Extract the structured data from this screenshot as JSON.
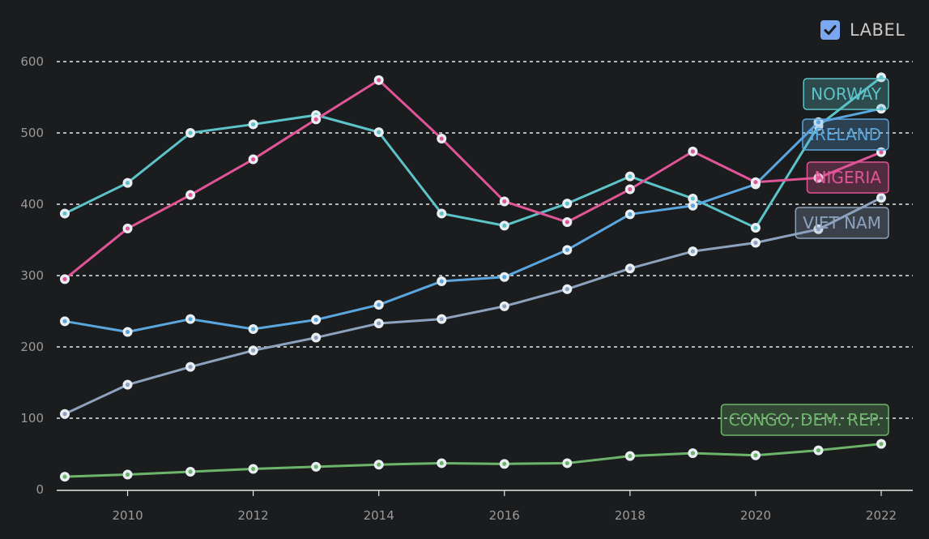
{
  "label_toggle": {
    "text": "LABEL",
    "checked": true
  },
  "chart_data": {
    "type": "line",
    "x": [
      2009,
      2010,
      2011,
      2012,
      2013,
      2014,
      2015,
      2016,
      2017,
      2018,
      2019,
      2020,
      2021,
      2022
    ],
    "xticks": [
      2010,
      2012,
      2014,
      2016,
      2018,
      2020,
      2022
    ],
    "yticks": [
      0,
      100,
      200,
      300,
      400,
      500,
      600
    ],
    "xlim": [
      2009,
      2022.5
    ],
    "ylim": [
      0,
      600
    ],
    "grid": "horizontal-dashed",
    "series": [
      {
        "name": "NORWAY",
        "color": "#5cc3c9",
        "values": [
          387,
          430,
          500,
          512,
          525,
          501,
          387,
          370,
          401,
          439,
          408,
          367,
          510,
          578
        ]
      },
      {
        "name": "IRELAND",
        "color": "#5aa6df",
        "values": [
          236,
          221,
          239,
          225,
          238,
          259,
          292,
          298,
          336,
          386,
          398,
          428,
          515,
          534
        ]
      },
      {
        "name": "NIGERIA",
        "color": "#e05597",
        "values": [
          295,
          366,
          413,
          463,
          519,
          574,
          492,
          404,
          375,
          421,
          474,
          431,
          437,
          473
        ]
      },
      {
        "name": "VIET NAM",
        "color": "#8da2be",
        "values": [
          106,
          147,
          172,
          195,
          213,
          233,
          239,
          257,
          281,
          310,
          334,
          346,
          365,
          409
        ]
      },
      {
        "name": "CONGO, DEM. REP.",
        "color": "#6db46b",
        "values": [
          18,
          21,
          25,
          29,
          32,
          35,
          37,
          36,
          37,
          47,
          51,
          48,
          55,
          64
        ]
      }
    ]
  }
}
